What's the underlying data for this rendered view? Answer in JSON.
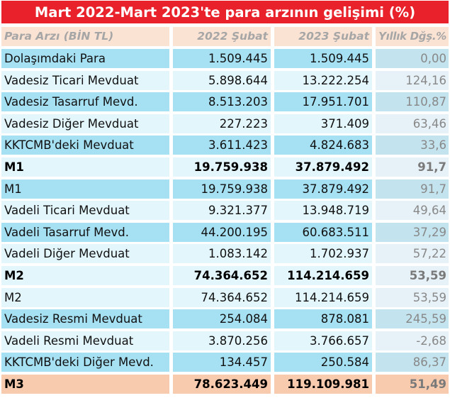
{
  "title": "Mart 2022-Mart 2023'te para arzının gelişimi (%)",
  "columns": [
    "Para Arzı (BİN TL)",
    "2022 Şubat",
    "2023 Şubat",
    "Yıllık Dğş.%"
  ],
  "rows": [
    {
      "label": "Dolaşımdaki Para",
      "y2022": "1.509.445",
      "y2023": "1.509.445",
      "change": "0,00"
    },
    {
      "label": "Vadesiz Ticari Mevduat",
      "y2022": "5.898.644",
      "y2023": "13.222.254",
      "change": "124,16"
    },
    {
      "label": "Vadesiz Tasarruf Mevd.",
      "y2022": "8.513.203",
      "y2023": "17.951.701",
      "change": "110,87"
    },
    {
      "label": "Vadesiz Diğer Mevduat",
      "y2022": "227.223",
      "y2023": "371.409",
      "change": "63,46"
    },
    {
      "label": "KKTCMB'deki Mevduat",
      "y2022": "3.611.423",
      "y2023": "4.824.683",
      "change": "33,6"
    },
    {
      "label": "M1",
      "y2022": "19.759.938",
      "y2023": "37.879.492",
      "change": "91,7"
    },
    {
      "label": "M1",
      "y2022": "19.759.938",
      "y2023": "37.879.492",
      "change": "91,7"
    },
    {
      "label": "Vadeli Ticari Mevduat",
      "y2022": "9.321.377",
      "y2023": "13.948.719",
      "change": "49,64"
    },
    {
      "label": "Vadeli Tasarruf Mevd.",
      "y2022": "44.200.195",
      "y2023": "60.683.511",
      "change": "37,29"
    },
    {
      "label": "Vadeli Diğer Mevduat",
      "y2022": "1.083.142",
      "y2023": "1.702.937",
      "change": "57,22"
    },
    {
      "label": "M2",
      "y2022": "74.364.652",
      "y2023": "114.214.659",
      "change": "53,59"
    },
    {
      "label": "M2",
      "y2022": "74.364.652",
      "y2023": "114.214.659",
      "change": "53,59"
    },
    {
      "label": "Vadesiz Resmi Mevduat",
      "y2022": "254.084",
      "y2023": "878.081",
      "change": "245,59"
    },
    {
      "label": "Vadeli Resmi Mevduat",
      "y2022": "3.870.256",
      "y2023": "3.766.657",
      "change": "-2,68"
    },
    {
      "label": "KKTCMB'deki Diğer Mevd.",
      "y2022": "134.457",
      "y2023": "250.584",
      "change": "86,37"
    },
    {
      "label": "M3",
      "y2022": "78.623.449",
      "y2023": "119.109.981",
      "change": "51,49"
    }
  ],
  "colors": {
    "title_bg": "#e8212a",
    "header_bg": "#fbe3d4",
    "row_blue": "#a6e0f3",
    "row_light": "#e3f6fc",
    "change_blue": "#c3e4ef",
    "change_light": "#e7f2f8",
    "total_m3": "#f8cbae"
  }
}
